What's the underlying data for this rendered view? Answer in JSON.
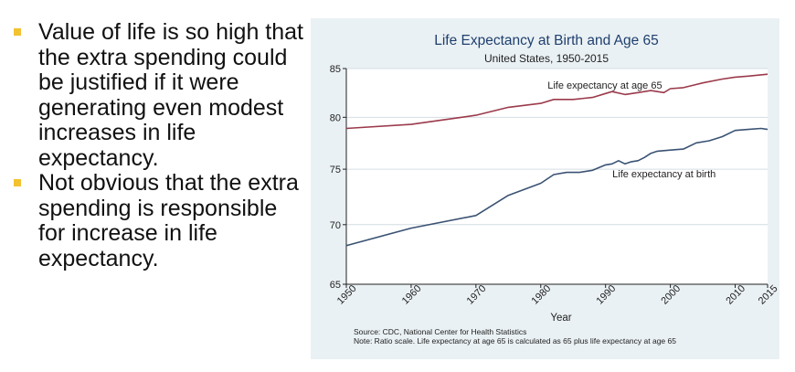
{
  "bullets": [
    "Value of life is so high that the extra spending could be justified if it were generating even modest increases in life expectancy.",
    "Not obvious that the extra spending is responsible for increase in life expectancy."
  ],
  "colors": {
    "panel_background": "#eaf1f4",
    "title": "#1f3f6e",
    "age65_line": "#9b3a4b",
    "birth_line": "#3a5273",
    "bullet_marker": "#f2c230"
  },
  "chart_data": {
    "type": "line",
    "title": "Life Expectancy at Birth and Age 65",
    "subtitle": "United States, 1950-2015",
    "xlabel": "Year",
    "ylabel": "",
    "xlim": [
      1950,
      2015
    ],
    "ylim": [
      65,
      85
    ],
    "y_scale": "log",
    "grid": "horizontal",
    "x_ticks": [
      1950,
      1960,
      1970,
      1980,
      1990,
      2000,
      2010,
      2015
    ],
    "y_ticks": [
      65,
      70,
      75,
      80,
      85
    ],
    "series": [
      {
        "name": "Life expectancy at age 65",
        "x": [
          1950,
          1960,
          1970,
          1975,
          1980,
          1982,
          1985,
          1988,
          1990,
          1991,
          1993,
          1995,
          1997,
          1999,
          2000,
          2002,
          2005,
          2008,
          2010,
          2012,
          2015
        ],
        "y": [
          78.9,
          79.3,
          80.2,
          81.0,
          81.4,
          81.8,
          81.8,
          82.0,
          82.4,
          82.6,
          82.3,
          82.5,
          82.7,
          82.5,
          82.9,
          83.0,
          83.5,
          83.9,
          84.1,
          84.2,
          84.4
        ]
      },
      {
        "name": "Life expectancy at birth",
        "x": [
          1950,
          1960,
          1970,
          1975,
          1980,
          1982,
          1984,
          1986,
          1988,
          1990,
          1991,
          1992,
          1993,
          1994,
          1995,
          1996,
          1997,
          1998,
          2000,
          2002,
          2004,
          2006,
          2008,
          2010,
          2012,
          2014,
          2015
        ],
        "y": [
          68.2,
          69.7,
          70.8,
          72.6,
          73.7,
          74.5,
          74.7,
          74.7,
          74.9,
          75.4,
          75.5,
          75.8,
          75.5,
          75.7,
          75.8,
          76.1,
          76.5,
          76.7,
          76.8,
          76.9,
          77.5,
          77.7,
          78.1,
          78.7,
          78.8,
          78.9,
          78.8
        ]
      }
    ],
    "annotations": [
      {
        "text": "Life expectancy at age 65",
        "series": 0,
        "near_x": 1985
      },
      {
        "text": "Life expectancy at birth",
        "series": 1,
        "near_x": 1995
      }
    ],
    "notes": [
      "Source: CDC, National Center for Health Statistics",
      "Note: Ratio scale. Life expectancy at age 65 is calculated as 65 plus life expectancy at age 65"
    ]
  }
}
